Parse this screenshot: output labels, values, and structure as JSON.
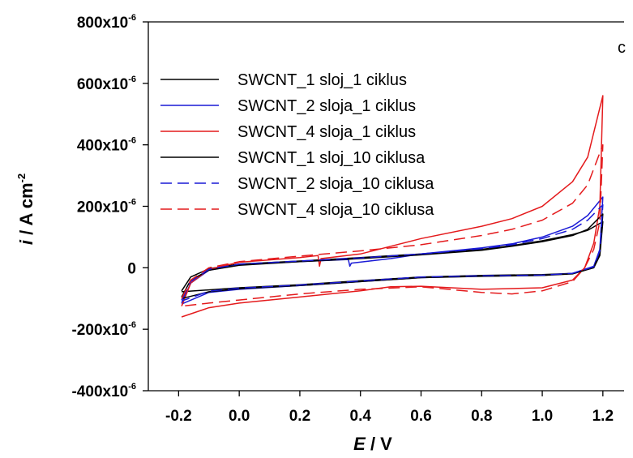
{
  "chart_data": {
    "type": "line",
    "panel_label": "c",
    "xlabel": {
      "var": "E",
      "unit": " / V"
    },
    "ylabel": {
      "var": "i",
      "unit": " / A cm",
      "sup": "-2"
    },
    "xlim": [
      -0.3,
      1.27
    ],
    "ylim": [
      -0.0004,
      0.0008
    ],
    "x_ticks": [
      {
        "value": -0.2,
        "label": "-0.2"
      },
      {
        "value": 0.0,
        "label": "0.0"
      },
      {
        "value": 0.2,
        "label": "0.2"
      },
      {
        "value": 0.4,
        "label": "0.4"
      },
      {
        "value": 0.6,
        "label": "0.6"
      },
      {
        "value": 0.8,
        "label": "0.8"
      },
      {
        "value": 1.0,
        "label": "1.0"
      },
      {
        "value": 1.2,
        "label": "1.2"
      }
    ],
    "y_ticks": [
      {
        "value": 0.0008,
        "base": "800x10",
        "sup": "-6"
      },
      {
        "value": 0.0006,
        "base": "600x10",
        "sup": "-6"
      },
      {
        "value": 0.0004,
        "base": "400x10",
        "sup": "-6"
      },
      {
        "value": 0.0002,
        "base": "200x10",
        "sup": "-6"
      },
      {
        "value": 0,
        "base": "0",
        "sup": ""
      },
      {
        "value": -0.0002,
        "base": "-200x10",
        "sup": "-6"
      },
      {
        "value": -0.0004,
        "base": "-400x10",
        "sup": "-6"
      }
    ],
    "series": [
      {
        "name": "SWCNT_1 sloj_1 ciklus",
        "color": "#000000",
        "dash": "solid",
        "anodic": [
          [
            -0.19,
            -7.5e-05
          ],
          [
            -0.16,
            -3e-05
          ],
          [
            -0.1,
            -3e-06
          ],
          [
            0.0,
            1.2e-05
          ],
          [
            0.2,
            2.2e-05
          ],
          [
            0.4,
            3.3e-05
          ],
          [
            0.6,
            4.5e-05
          ],
          [
            0.8,
            6e-05
          ],
          [
            0.9,
            7.2e-05
          ],
          [
            1.0,
            8.8e-05
          ],
          [
            1.1,
            0.000108
          ],
          [
            1.15,
            0.000122
          ],
          [
            1.2,
            0.00015
          ]
        ],
        "cathodic": [
          [
            1.2,
            0.00015
          ],
          [
            1.19,
            4e-05
          ],
          [
            1.17,
            0.0
          ],
          [
            1.1,
            -1.8e-05
          ],
          [
            1.0,
            -2.2e-05
          ],
          [
            0.8,
            -2.5e-05
          ],
          [
            0.6,
            -3e-05
          ],
          [
            0.4,
            -4.2e-05
          ],
          [
            0.2,
            -5.5e-05
          ],
          [
            0.0,
            -6.5e-05
          ],
          [
            -0.1,
            -7.2e-05
          ],
          [
            -0.19,
            -7.8e-05
          ]
        ]
      },
      {
        "name": "SWCNT_2 sloja_1 ciklus",
        "color": "#1a1ad6",
        "dash": "solid",
        "anodic": [
          [
            -0.19,
            -0.000115
          ],
          [
            -0.16,
            -5e-05
          ],
          [
            -0.1,
            -8e-06
          ],
          [
            0.0,
            1e-05
          ],
          [
            0.2,
            2e-05
          ],
          [
            0.36,
            2.7e-05
          ],
          [
            0.365,
            5e-06
          ],
          [
            0.37,
            1.5e-05
          ],
          [
            0.5,
            3e-05
          ],
          [
            0.6,
            4.5e-05
          ],
          [
            0.8,
            6.5e-05
          ],
          [
            0.9,
            7.8e-05
          ],
          [
            1.0,
            0.0001
          ],
          [
            1.1,
            0.000135
          ],
          [
            1.15,
            0.00017
          ],
          [
            1.2,
            0.00023
          ]
        ],
        "cathodic": [
          [
            1.2,
            0.00023
          ],
          [
            1.19,
            6e-05
          ],
          [
            1.17,
            5e-06
          ],
          [
            1.1,
            -1.8e-05
          ],
          [
            1.0,
            -2.5e-05
          ],
          [
            0.8,
            -2.7e-05
          ],
          [
            0.6,
            -3.2e-05
          ],
          [
            0.4,
            -4.5e-05
          ],
          [
            0.2,
            -5.8e-05
          ],
          [
            0.0,
            -7e-05
          ],
          [
            -0.1,
            -8e-05
          ],
          [
            -0.19,
            -0.000118
          ]
        ]
      },
      {
        "name": "SWCNT_4 sloja_1 ciklus",
        "color": "#e41a1c",
        "dash": "solid",
        "anodic": [
          [
            -0.19,
            -0.000125
          ],
          [
            -0.16,
            -5e-05
          ],
          [
            -0.1,
            -5e-06
          ],
          [
            0.0,
            1.8e-05
          ],
          [
            0.2,
            3.3e-05
          ],
          [
            0.26,
            4e-05
          ],
          [
            0.265,
            5e-06
          ],
          [
            0.27,
            3e-05
          ],
          [
            0.4,
            4.5e-05
          ],
          [
            0.6,
            9.5e-05
          ],
          [
            0.8,
            0.000135
          ],
          [
            0.9,
            0.00016
          ],
          [
            1.0,
            0.0002
          ],
          [
            1.1,
            0.00028
          ],
          [
            1.15,
            0.00036
          ],
          [
            1.2,
            0.00056
          ]
        ],
        "cathodic": [
          [
            1.2,
            0.00056
          ],
          [
            1.19,
            0.0002
          ],
          [
            1.17,
            8e-05
          ],
          [
            1.14,
            0.0
          ],
          [
            1.1,
            -4e-05
          ],
          [
            1.0,
            -6.5e-05
          ],
          [
            0.8,
            -7e-05
          ],
          [
            0.6,
            -6e-05
          ],
          [
            0.5,
            -6.2e-05
          ],
          [
            0.4,
            -7.5e-05
          ],
          [
            0.2,
            -9.5e-05
          ],
          [
            0.0,
            -0.000115
          ],
          [
            -0.1,
            -0.00013
          ],
          [
            -0.19,
            -0.00016
          ]
        ]
      },
      {
        "name": "SWCNT_1 sloj_10 ciklusa",
        "color": "#000000",
        "dash": "solid",
        "anodic": [
          [
            -0.19,
            -9.5e-05
          ],
          [
            -0.16,
            -4e-05
          ],
          [
            -0.1,
            -8e-06
          ],
          [
            0.0,
            8e-06
          ],
          [
            0.2,
            2e-05
          ],
          [
            0.4,
            3e-05
          ],
          [
            0.6,
            4.2e-05
          ],
          [
            0.8,
            5.7e-05
          ],
          [
            0.9,
            7e-05
          ],
          [
            1.0,
            8.5e-05
          ],
          [
            1.1,
            0.000105
          ],
          [
            1.15,
            0.000125
          ],
          [
            1.2,
            0.000175
          ]
        ],
        "cathodic": [
          [
            1.2,
            0.000175
          ],
          [
            1.19,
            4.5e-05
          ],
          [
            1.17,
            0.0
          ],
          [
            1.1,
            -2e-05
          ],
          [
            1.0,
            -2.5e-05
          ],
          [
            0.8,
            -2.8e-05
          ],
          [
            0.6,
            -3.2e-05
          ],
          [
            0.4,
            -4.5e-05
          ],
          [
            0.2,
            -5.8e-05
          ],
          [
            0.0,
            -6.8e-05
          ],
          [
            -0.1,
            -7.8e-05
          ],
          [
            -0.19,
            -0.0001
          ]
        ]
      },
      {
        "name": "SWCNT_2 sloja_10 ciklusa",
        "color": "#1a1ad6",
        "dash": "dashed",
        "anodic": [
          [
            -0.19,
            -0.000105
          ],
          [
            -0.16,
            -4.5e-05
          ],
          [
            -0.1,
            -5e-06
          ],
          [
            0.0,
            1.2e-05
          ],
          [
            0.2,
            2.2e-05
          ],
          [
            0.4,
            3.2e-05
          ],
          [
            0.6,
            4.5e-05
          ],
          [
            0.8,
            6.2e-05
          ],
          [
            0.9,
            7.5e-05
          ],
          [
            1.0,
            9.5e-05
          ],
          [
            1.1,
            0.000125
          ],
          [
            1.15,
            0.000155
          ],
          [
            1.2,
            0.000205
          ]
        ],
        "cathodic": [
          [
            1.2,
            0.000205
          ],
          [
            1.19,
            5.5e-05
          ],
          [
            1.17,
            3e-06
          ],
          [
            1.1,
            -1.8e-05
          ],
          [
            1.0,
            -2.4e-05
          ],
          [
            0.8,
            -2.6e-05
          ],
          [
            0.6,
            -3e-05
          ],
          [
            0.4,
            -4.3e-05
          ],
          [
            0.2,
            -5.6e-05
          ],
          [
            0.0,
            -6.6e-05
          ],
          [
            -0.1,
            -7.6e-05
          ],
          [
            -0.19,
            -0.000108
          ]
        ]
      },
      {
        "name": "SWCNT_4 sloja_10 ciklusa",
        "color": "#e41a1c",
        "dash": "dashed",
        "anodic": [
          [
            -0.19,
            -0.0001
          ],
          [
            -0.16,
            -4e-05
          ],
          [
            -0.1,
            0.0
          ],
          [
            0.0,
            2e-05
          ],
          [
            0.2,
            3.8e-05
          ],
          [
            0.4,
            5.5e-05
          ],
          [
            0.6,
            7.5e-05
          ],
          [
            0.8,
            0.000105
          ],
          [
            0.9,
            0.000125
          ],
          [
            1.0,
            0.000155
          ],
          [
            1.1,
            0.00021
          ],
          [
            1.15,
            0.00027
          ],
          [
            1.2,
            0.0004
          ]
        ],
        "cathodic": [
          [
            1.2,
            0.0004
          ],
          [
            1.19,
            0.00015
          ],
          [
            1.17,
            6e-05
          ],
          [
            1.14,
            0.0
          ],
          [
            1.1,
            -4.5e-05
          ],
          [
            1.0,
            -7.5e-05
          ],
          [
            0.9,
            -8.5e-05
          ],
          [
            0.8,
            -8e-05
          ],
          [
            0.6,
            -6.2e-05
          ],
          [
            0.4,
            -7e-05
          ],
          [
            0.2,
            -8.5e-05
          ],
          [
            0.0,
            -0.000105
          ],
          [
            -0.1,
            -0.000115
          ],
          [
            -0.19,
            -0.000125
          ]
        ]
      }
    ],
    "legend_placement": "top-left inside plot",
    "grid": false
  }
}
